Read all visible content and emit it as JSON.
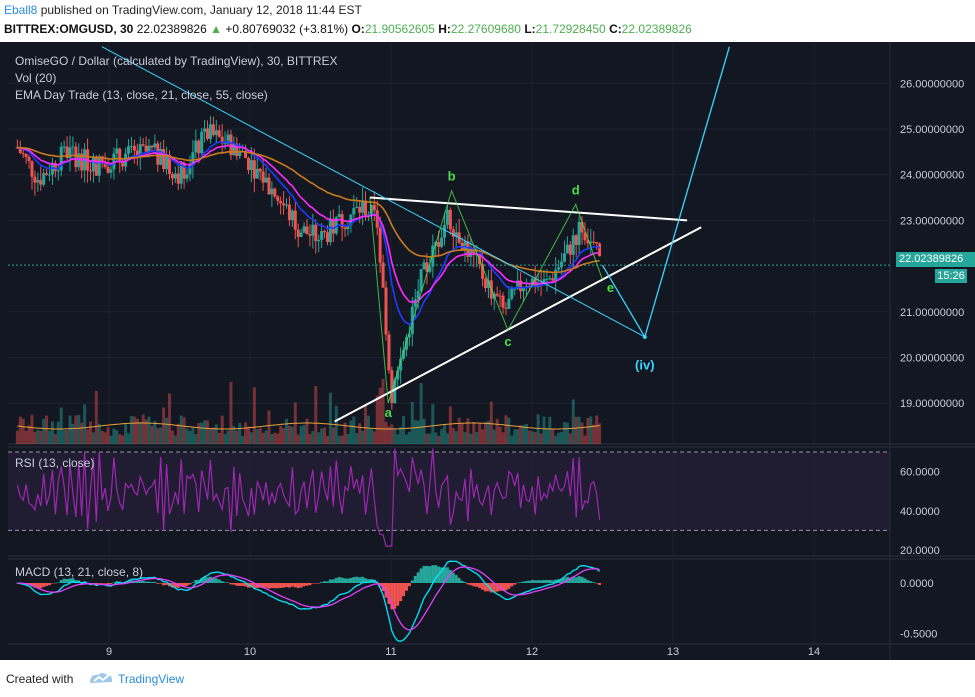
{
  "header": {
    "author": "Eball8",
    "published": " published on TradingView.com, January 12, 2018 11:44 EST",
    "symbol": "BITTREX:OMGUSD, 30",
    "last": "22.02389826",
    "change": "+0.80769032 (+3.81%)",
    "o_label": "O:",
    "o": "21.90562605",
    "h_label": "H:",
    "h": "22.27609680",
    "l_label": "L:",
    "l": "21.72928450",
    "c_label": "C:",
    "c": "22.02389826"
  },
  "pane_labels": {
    "main_title": "OmiseGO / Dollar (calculated by TradingView), 30, BITTREX",
    "vol": "Vol (20)",
    "ema": "EMA Day Trade (13, close, 21, close, 55, close)",
    "rsi": "RSI (13, close)",
    "macd": "MACD (13, 21, close, 8)"
  },
  "last_price_tag": "22.02389826",
  "countdown_tag": "15:26",
  "wave_labels": {
    "a": "a",
    "b": "b",
    "c": "c",
    "d": "d",
    "e": "e",
    "iv": "(iv)"
  },
  "footer": {
    "created": "Created with",
    "brand": "TradingView"
  },
  "colors": {
    "background": "#131722",
    "wave_label": "#4cde4c",
    "iv_label": "#3ad6ff",
    "tag": "#26a69a",
    "rsi": "#9c27b0",
    "macd": "#00e5ff",
    "signal": "#e040fb"
  },
  "chart_data": {
    "type": "candlestick",
    "x_ticks": [
      "9",
      "10",
      "11",
      "12",
      "13",
      "14"
    ],
    "price_ticks": [
      "26.00000000",
      "25.00000000",
      "24.00000000",
      "23.00000000",
      "21.00000000",
      "20.00000000",
      "19.00000000"
    ],
    "rsi_ticks": [
      "60.0000",
      "40.0000",
      "20.0000"
    ],
    "macd_ticks": [
      "0.0000",
      "-0.5000"
    ],
    "price_range": [
      18.5,
      26.5
    ],
    "close_path": [
      {
        "x": 8.35,
        "y": 24.6
      },
      {
        "x": 8.5,
        "y": 23.9
      },
      {
        "x": 8.7,
        "y": 24.5
      },
      {
        "x": 8.9,
        "y": 24.2
      },
      {
        "x": 9.1,
        "y": 24.4
      },
      {
        "x": 9.3,
        "y": 24.5
      },
      {
        "x": 9.5,
        "y": 24.0
      },
      {
        "x": 9.7,
        "y": 24.9
      },
      {
        "x": 9.9,
        "y": 24.6
      },
      {
        "x": 10.05,
        "y": 24.1
      },
      {
        "x": 10.2,
        "y": 23.5
      },
      {
        "x": 10.35,
        "y": 22.8
      },
      {
        "x": 10.5,
        "y": 22.6
      },
      {
        "x": 10.65,
        "y": 23.0
      },
      {
        "x": 10.8,
        "y": 23.3
      },
      {
        "x": 10.9,
        "y": 23.0
      },
      {
        "x": 10.97,
        "y": 20.5
      },
      {
        "x": 11.0,
        "y": 19.1
      },
      {
        "x": 11.1,
        "y": 20.3
      },
      {
        "x": 11.2,
        "y": 21.6
      },
      {
        "x": 11.3,
        "y": 22.3
      },
      {
        "x": 11.4,
        "y": 23.1
      },
      {
        "x": 11.5,
        "y": 22.6
      },
      {
        "x": 11.65,
        "y": 21.8
      },
      {
        "x": 11.8,
        "y": 21.0
      },
      {
        "x": 11.95,
        "y": 21.7
      },
      {
        "x": 12.1,
        "y": 21.6
      },
      {
        "x": 12.25,
        "y": 22.3
      },
      {
        "x": 12.35,
        "y": 22.9
      },
      {
        "x": 12.45,
        "y": 22.3
      },
      {
        "x": 12.5,
        "y": 22.02
      }
    ],
    "triangle_upper": [
      {
        "x": 10.85,
        "y": 23.5
      },
      {
        "x": 13.1,
        "y": 23.0
      }
    ],
    "triangle_lower": [
      {
        "x": 10.6,
        "y": 18.6
      },
      {
        "x": 13.2,
        "y": 22.85
      }
    ],
    "projection": [
      {
        "x": 12.5,
        "y": 22.02
      },
      {
        "x": 12.8,
        "y": 20.45
      },
      {
        "x": 13.4,
        "y": 26.8
      }
    ],
    "wave_points": {
      "a": {
        "x": 10.98,
        "y": 19.0
      },
      "b": {
        "x": 11.43,
        "y": 23.65
      },
      "c": {
        "x": 11.83,
        "y": 20.6
      },
      "d": {
        "x": 12.31,
        "y": 23.35
      },
      "e": {
        "x": 12.5,
        "y": 21.7
      },
      "iv": {
        "x": 12.8,
        "y": 20.0
      }
    }
  }
}
